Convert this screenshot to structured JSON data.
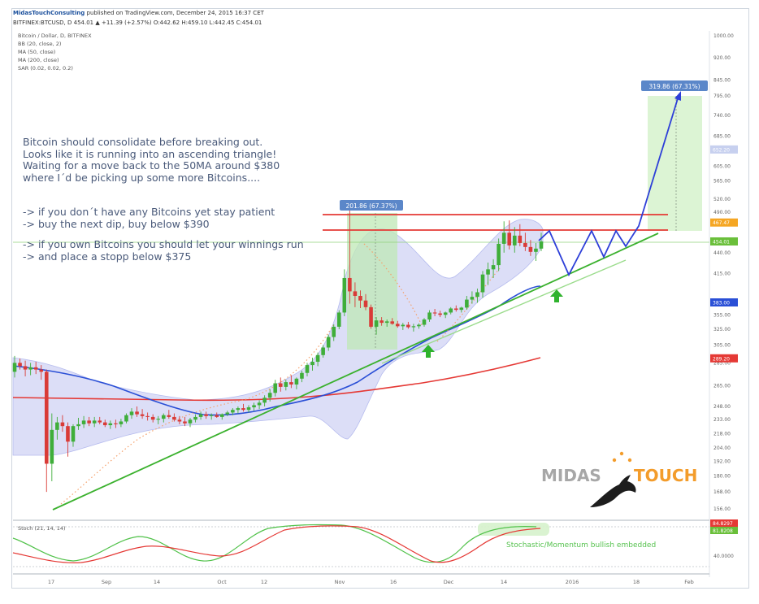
{
  "header": {
    "publisher": "MidasTouchConsulting",
    "published_text": "published on TradingView.com, December 24, 2015 16:37 CET",
    "ticker_line": "BITFINEX:BTCUSD, D 454.01 ▲ +11.39 (+2.57%) O:442.62 H:459.10 L:442.45 C:454.01"
  },
  "indicators": [
    "Bitcoin / Dollar, D, BITFINEX",
    "BB (20, close, 2)",
    "MA (50, close)",
    "MA (200, close)",
    "SAR (0.02, 0.02, 0.2)"
  ],
  "annotations": {
    "block1": [
      "Bitcoin should consolidate before breaking out.",
      "Looks like it is running into an ascending triangle!",
      "Waiting for a move back to the 50MA around $380",
      "where I´d be picking up some more Bitcoins...."
    ],
    "block2": [
      "-> if you don´t have any Bitcoins yet stay patient",
      "-> buy the next dip, buy below $390"
    ],
    "block3": [
      "-> if you own Bitcoins you should let your winnings run",
      "-> and place a stopp below $375"
    ],
    "measure1": "201.86 (67.37%)",
    "measure2": "319.86 (67.31%)",
    "stoch_note": "Stochastic/Momentum bullish embedded"
  },
  "logo": {
    "word1": "MIDAS",
    "word2": "TOUCH"
  },
  "chart_data": {
    "type": "candlestick",
    "price_axis_ticks": [
      "1000.00",
      "920.00",
      "845.00",
      "795.00",
      "740.00",
      "685.00",
      "650.00",
      "605.00",
      "565.00",
      "520.00",
      "490.00",
      "440.00",
      "415.00",
      "385.00",
      "355.00",
      "325.00",
      "305.00",
      "285.00",
      "265.00",
      "248.00",
      "233.00",
      "218.00",
      "204.00",
      "192.00",
      "180.00",
      "168.00",
      "156.00"
    ],
    "price_labels": [
      {
        "value": "652.20",
        "color": "#c7d0ef"
      },
      {
        "value": "467.47",
        "color": "#f5a623"
      },
      {
        "value": "454.01",
        "color": "#6abf3a"
      },
      {
        "value": "383.00",
        "color": "#2a4fd6"
      },
      {
        "value": "289.20",
        "color": "#e53935"
      }
    ],
    "time_axis_ticks": [
      "17",
      "Sep",
      "14",
      "Oct",
      "12",
      "Nov",
      "16",
      "Dec",
      "14",
      "2016",
      "18",
      "Feb"
    ],
    "stoch": {
      "title": "Stoch (21, 14, 14)",
      "axis_ticks": [
        "40.0000"
      ],
      "labels": [
        {
          "value": "84.8297",
          "color": "#e53935"
        },
        {
          "value": "81.8208",
          "color": "#6abf3a"
        }
      ]
    },
    "candles": [
      [
        277,
        292,
        272,
        285
      ],
      [
        285,
        289,
        279,
        282
      ],
      [
        282,
        287,
        273,
        279
      ],
      [
        279,
        285,
        274,
        281
      ],
      [
        281,
        286,
        275,
        279
      ],
      [
        279,
        283,
        270,
        277
      ],
      [
        277,
        279,
        168,
        190
      ],
      [
        190,
        240,
        176,
        222
      ],
      [
        222,
        236,
        212,
        230
      ],
      [
        230,
        238,
        220,
        226
      ],
      [
        226,
        230,
        196,
        210
      ],
      [
        210,
        228,
        205,
        226
      ],
      [
        226,
        235,
        222,
        228
      ],
      [
        228,
        237,
        224,
        232
      ],
      [
        232,
        236,
        226,
        229
      ],
      [
        229,
        236,
        225,
        232
      ],
      [
        232,
        236,
        228,
        230
      ],
      [
        230,
        233,
        225,
        227
      ],
      [
        227,
        232,
        223,
        229
      ],
      [
        229,
        233,
        224,
        228
      ],
      [
        228,
        234,
        225,
        231
      ],
      [
        231,
        240,
        229,
        238
      ],
      [
        238,
        246,
        234,
        242
      ],
      [
        242,
        248,
        236,
        239
      ],
      [
        239,
        245,
        234,
        237
      ],
      [
        237,
        241,
        232,
        236
      ],
      [
        236,
        239,
        230,
        233
      ],
      [
        233,
        237,
        228,
        234
      ],
      [
        234,
        240,
        230,
        238
      ],
      [
        238,
        244,
        234,
        236
      ],
      [
        236,
        240,
        231,
        233
      ],
      [
        233,
        237,
        228,
        231
      ],
      [
        231,
        236,
        226,
        229
      ],
      [
        229,
        235,
        225,
        233
      ],
      [
        233,
        239,
        230,
        236
      ],
      [
        236,
        242,
        233,
        239
      ],
      [
        239,
        242,
        234,
        237
      ],
      [
        237,
        240,
        233,
        238
      ],
      [
        238,
        241,
        235,
        236
      ],
      [
        236,
        240,
        233,
        239
      ],
      [
        239,
        243,
        237,
        241
      ],
      [
        241,
        246,
        238,
        244
      ],
      [
        244,
        248,
        240,
        246
      ],
      [
        246,
        250,
        242,
        244
      ],
      [
        244,
        249,
        241,
        247
      ],
      [
        247,
        251,
        243,
        249
      ],
      [
        249,
        253,
        245,
        251
      ],
      [
        251,
        257,
        248,
        255
      ],
      [
        255,
        262,
        252,
        259
      ],
      [
        259,
        270,
        256,
        267
      ],
      [
        267,
        272,
        260,
        264
      ],
      [
        264,
        270,
        261,
        268
      ],
      [
        268,
        274,
        263,
        266
      ],
      [
        266,
        272,
        262,
        271
      ],
      [
        271,
        278,
        268,
        276
      ],
      [
        276,
        285,
        273,
        283
      ],
      [
        283,
        290,
        278,
        286
      ],
      [
        286,
        296,
        282,
        293
      ],
      [
        293,
        305,
        290,
        302
      ],
      [
        302,
        318,
        298,
        315
      ],
      [
        315,
        335,
        310,
        330
      ],
      [
        330,
        365,
        325,
        360
      ],
      [
        360,
        420,
        352,
        410
      ],
      [
        410,
        500,
        380,
        395
      ],
      [
        395,
        405,
        372,
        390
      ],
      [
        390,
        396,
        370,
        385
      ],
      [
        385,
        392,
        365,
        372
      ],
      [
        372,
        378,
        326,
        330
      ],
      [
        330,
        350,
        318,
        343
      ],
      [
        343,
        350,
        332,
        338
      ],
      [
        338,
        345,
        330,
        341
      ],
      [
        341,
        348,
        334,
        336
      ],
      [
        336,
        342,
        328,
        331
      ],
      [
        331,
        338,
        324,
        334
      ],
      [
        334,
        340,
        326,
        329
      ],
      [
        329,
        336,
        322,
        331
      ],
      [
        331,
        337,
        326,
        334
      ],
      [
        334,
        348,
        330,
        345
      ],
      [
        345,
        365,
        340,
        360
      ],
      [
        360,
        368,
        352,
        358
      ],
      [
        358,
        364,
        350,
        355
      ],
      [
        355,
        362,
        348,
        360
      ],
      [
        360,
        372,
        356,
        369
      ],
      [
        369,
        376,
        362,
        366
      ],
      [
        366,
        373,
        360,
        371
      ],
      [
        371,
        390,
        366,
        386
      ],
      [
        386,
        395,
        380,
        389
      ],
      [
        389,
        398,
        382,
        394
      ],
      [
        394,
        418,
        388,
        414
      ],
      [
        414,
        428,
        402,
        420
      ],
      [
        420,
        432,
        410,
        425
      ],
      [
        425,
        456,
        418,
        451
      ],
      [
        451,
        470,
        440,
        460
      ],
      [
        460,
        472,
        444,
        449
      ],
      [
        449,
        464,
        440,
        458
      ],
      [
        458,
        466,
        448,
        452
      ],
      [
        452,
        460,
        442,
        447
      ],
      [
        447,
        455,
        436,
        441
      ],
      [
        441,
        452,
        430,
        445
      ],
      [
        445,
        460,
        442,
        454
      ]
    ]
  }
}
